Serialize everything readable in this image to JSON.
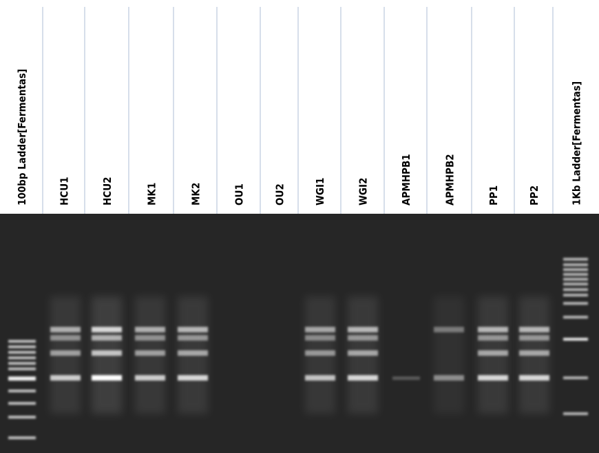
{
  "lanes": [
    "100bp Ladder[Fermentas]",
    "HCU1",
    "HCU2",
    "MK1",
    "MK2",
    "OU1",
    "OU2",
    "WGI1",
    "WGI2",
    "APMHPB1",
    "APMHPB2",
    "PP1",
    "PP2",
    "1Kb Ladder[Fermentas]"
  ]
}
